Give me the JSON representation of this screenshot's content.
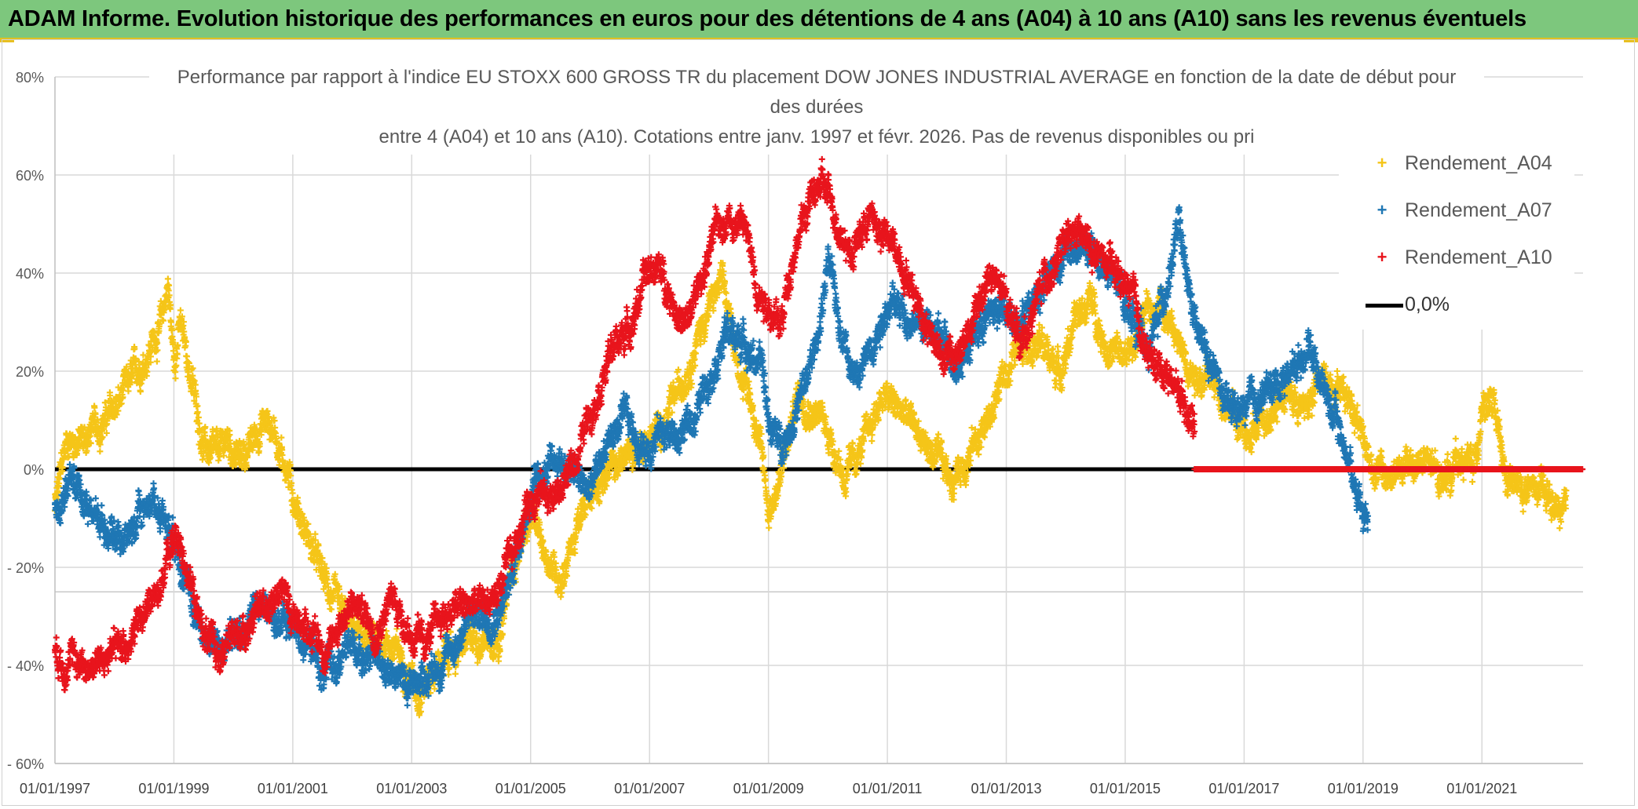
{
  "banner": {
    "title": "ADAM Informe. Evolution historique des performances en euros pour des détentions de 4 ans (A04) à 10 ans (A10) sans les revenus éventuels",
    "background": "#7dc77d"
  },
  "chart_data": {
    "type": "scatter",
    "title_lines": [
      "Performance par rapport à l'indice EU STOXX 600 GROSS TR  du placement DOW JONES INDUSTRIAL AVERAGE en fonction de la date de début pour",
      "des durées",
      "entre 4 (A04) et 10 ans (A10). Cotations entre janv. 1997 et févr. 2026. Pas de revenus disponibles ou pri"
    ],
    "x_tick_labels": [
      "01/01/1997",
      "01/01/1999",
      "01/01/2001",
      "01/01/2003",
      "01/01/2005",
      "01/01/2007",
      "01/01/2009",
      "01/01/2011",
      "01/01/2013",
      "01/01/2015",
      "01/01/2017",
      "01/01/2019",
      "01/01/2021"
    ],
    "x_range": [
      "1997-01-01",
      "2022-09-01"
    ],
    "y_tick_labels": [
      "80%",
      "60%",
      "40%",
      "20%",
      "0%",
      "- 20%",
      "- 40%",
      "- 60%"
    ],
    "y_ticks": [
      80,
      60,
      40,
      20,
      0,
      -20,
      -40,
      -60
    ],
    "ylim": [
      -60,
      80
    ],
    "grid": true,
    "legend_position": "top-right",
    "series": [
      {
        "name": "Rendement_A04",
        "color": "#f5c518",
        "marker": "+",
        "x_end": "2022-06-01",
        "anchors": [
          [
            1997.0,
            -8
          ],
          [
            1997.2,
            6
          ],
          [
            1997.5,
            6
          ],
          [
            1997.8,
            10
          ],
          [
            1998.0,
            12
          ],
          [
            1998.3,
            18
          ],
          [
            1998.6,
            25
          ],
          [
            1998.8,
            30
          ],
          [
            1998.9,
            38
          ],
          [
            1999.0,
            22
          ],
          [
            1999.1,
            30
          ],
          [
            1999.3,
            18
          ],
          [
            1999.5,
            5
          ],
          [
            1999.7,
            2
          ],
          [
            1999.9,
            6
          ],
          [
            2000.1,
            2
          ],
          [
            2000.3,
            5
          ],
          [
            2000.5,
            10
          ],
          [
            2000.7,
            8
          ],
          [
            2000.9,
            0
          ],
          [
            2001.0,
            -5
          ],
          [
            2001.2,
            -12
          ],
          [
            2001.5,
            -22
          ],
          [
            2001.8,
            -30
          ],
          [
            2002.0,
            -33
          ],
          [
            2002.3,
            -36
          ],
          [
            2002.6,
            -35
          ],
          [
            2002.9,
            -40
          ],
          [
            2003.1,
            -45
          ],
          [
            2003.3,
            -42
          ],
          [
            2003.6,
            -38
          ],
          [
            2003.9,
            -36
          ],
          [
            2004.2,
            -34
          ],
          [
            2004.5,
            -33
          ],
          [
            2004.7,
            -20
          ],
          [
            2004.9,
            -12
          ],
          [
            2005.0,
            -10
          ],
          [
            2005.2,
            -16
          ],
          [
            2005.5,
            -22
          ],
          [
            2005.8,
            -12
          ],
          [
            2006.1,
            -2
          ],
          [
            2006.4,
            0
          ],
          [
            2006.7,
            4
          ],
          [
            2007.0,
            6
          ],
          [
            2007.3,
            10
          ],
          [
            2007.6,
            20
          ],
          [
            2007.9,
            30
          ],
          [
            2008.2,
            38
          ],
          [
            2008.5,
            22
          ],
          [
            2008.8,
            10
          ],
          [
            2009.0,
            -8
          ],
          [
            2009.2,
            -2
          ],
          [
            2009.5,
            16
          ],
          [
            2009.8,
            12
          ],
          [
            2010.0,
            8
          ],
          [
            2010.3,
            -2
          ],
          [
            2010.6,
            5
          ],
          [
            2010.9,
            15
          ],
          [
            2011.2,
            12
          ],
          [
            2011.5,
            8
          ],
          [
            2011.8,
            2
          ],
          [
            2012.1,
            -2
          ],
          [
            2012.4,
            4
          ],
          [
            2012.7,
            10
          ],
          [
            2013.0,
            20
          ],
          [
            2013.3,
            28
          ],
          [
            2013.6,
            25
          ],
          [
            2013.9,
            20
          ],
          [
            2014.1,
            28
          ],
          [
            2014.4,
            35
          ],
          [
            2014.7,
            25
          ],
          [
            2015.0,
            22
          ],
          [
            2015.3,
            30
          ],
          [
            2015.6,
            35
          ],
          [
            2015.9,
            25
          ],
          [
            2016.2,
            20
          ],
          [
            2016.5,
            18
          ],
          [
            2016.8,
            12
          ],
          [
            2017.1,
            5
          ],
          [
            2017.4,
            12
          ],
          [
            2017.7,
            16
          ],
          [
            2018.0,
            12
          ],
          [
            2018.3,
            18
          ],
          [
            2018.6,
            18
          ],
          [
            2018.9,
            12
          ],
          [
            2019.1,
            2
          ],
          [
            2019.4,
            -2
          ],
          [
            2019.7,
            0
          ],
          [
            2020.0,
            2
          ],
          [
            2020.3,
            -2
          ],
          [
            2020.6,
            2
          ],
          [
            2020.9,
            1
          ],
          [
            2021.0,
            15
          ],
          [
            2021.2,
            12
          ],
          [
            2021.4,
            -3
          ],
          [
            2021.7,
            -4
          ],
          [
            2022.0,
            -5
          ],
          [
            2022.4,
            -10
          ]
        ]
      },
      {
        "name": "Rendement_A07",
        "color": "#1f77b4",
        "marker": "+",
        "x_end": "2019-02-01",
        "anchors": [
          [
            1997.0,
            -8
          ],
          [
            1997.3,
            -2
          ],
          [
            1997.6,
            -8
          ],
          [
            1997.9,
            -12
          ],
          [
            1998.2,
            -14
          ],
          [
            1998.4,
            -10
          ],
          [
            1998.6,
            -6
          ],
          [
            1998.9,
            -10
          ],
          [
            1999.1,
            -16
          ],
          [
            1999.3,
            -28
          ],
          [
            1999.6,
            -35
          ],
          [
            1999.9,
            -36
          ],
          [
            2000.1,
            -33
          ],
          [
            2000.4,
            -28
          ],
          [
            2000.7,
            -30
          ],
          [
            2001.0,
            -32
          ],
          [
            2001.3,
            -36
          ],
          [
            2001.5,
            -42
          ],
          [
            2001.7,
            -40
          ],
          [
            2002.0,
            -36
          ],
          [
            2002.3,
            -38
          ],
          [
            2002.6,
            -40
          ],
          [
            2002.9,
            -44
          ],
          [
            2003.2,
            -42
          ],
          [
            2003.5,
            -40
          ],
          [
            2003.8,
            -34
          ],
          [
            2004.0,
            -30
          ],
          [
            2004.3,
            -30
          ],
          [
            2004.6,
            -26
          ],
          [
            2004.8,
            -14
          ],
          [
            2005.0,
            -6
          ],
          [
            2005.2,
            -2
          ],
          [
            2005.5,
            2
          ],
          [
            2005.8,
            -2
          ],
          [
            2006.0,
            -5
          ],
          [
            2006.3,
            6
          ],
          [
            2006.6,
            10
          ],
          [
            2006.9,
            4
          ],
          [
            2007.2,
            8
          ],
          [
            2007.5,
            6
          ],
          [
            2007.8,
            12
          ],
          [
            2008.0,
            20
          ],
          [
            2008.3,
            28
          ],
          [
            2008.6,
            26
          ],
          [
            2008.9,
            20
          ],
          [
            2009.0,
            10
          ],
          [
            2009.2,
            5
          ],
          [
            2009.4,
            10
          ],
          [
            2009.6,
            16
          ],
          [
            2009.8,
            25
          ],
          [
            2010.0,
            42
          ],
          [
            2010.2,
            30
          ],
          [
            2010.5,
            18
          ],
          [
            2010.8,
            28
          ],
          [
            2011.0,
            34
          ],
          [
            2011.3,
            32
          ],
          [
            2011.6,
            30
          ],
          [
            2011.9,
            26
          ],
          [
            2012.2,
            22
          ],
          [
            2012.5,
            28
          ],
          [
            2012.8,
            33
          ],
          [
            2013.1,
            30
          ],
          [
            2013.4,
            34
          ],
          [
            2013.7,
            40
          ],
          [
            2014.0,
            44
          ],
          [
            2014.3,
            45
          ],
          [
            2014.6,
            42
          ],
          [
            2014.9,
            36
          ],
          [
            2015.2,
            30
          ],
          [
            2015.4,
            24
          ],
          [
            2015.7,
            38
          ],
          [
            2015.9,
            50
          ],
          [
            2016.0,
            40
          ],
          [
            2016.2,
            28
          ],
          [
            2016.5,
            20
          ],
          [
            2016.7,
            12
          ],
          [
            2017.0,
            12
          ],
          [
            2017.3,
            15
          ],
          [
            2017.6,
            18
          ],
          [
            2017.9,
            22
          ],
          [
            2018.1,
            26
          ],
          [
            2018.3,
            18
          ],
          [
            2018.6,
            8
          ],
          [
            2018.8,
            0
          ],
          [
            2019.0,
            -8
          ]
        ]
      },
      {
        "name": "Rendement_A10",
        "color": "#e8141c",
        "marker": "+",
        "x_end": "2016-03-01",
        "anchors": [
          [
            1997.0,
            -38
          ],
          [
            1997.3,
            -39
          ],
          [
            1997.6,
            -40
          ],
          [
            1997.9,
            -38
          ],
          [
            1998.2,
            -35
          ],
          [
            1998.5,
            -30
          ],
          [
            1998.8,
            -22
          ],
          [
            1999.0,
            -14
          ],
          [
            1999.2,
            -18
          ],
          [
            1999.4,
            -30
          ],
          [
            1999.7,
            -38
          ],
          [
            1999.9,
            -36
          ],
          [
            2000.2,
            -32
          ],
          [
            2000.5,
            -28
          ],
          [
            2000.8,
            -24
          ],
          [
            2001.0,
            -30
          ],
          [
            2001.3,
            -32
          ],
          [
            2001.6,
            -38
          ],
          [
            2001.8,
            -30
          ],
          [
            2002.1,
            -28
          ],
          [
            2002.4,
            -32
          ],
          [
            2002.7,
            -26
          ],
          [
            2003.0,
            -34
          ],
          [
            2003.2,
            -36
          ],
          [
            2003.5,
            -30
          ],
          [
            2003.8,
            -28
          ],
          [
            2004.1,
            -28
          ],
          [
            2004.4,
            -26
          ],
          [
            2004.7,
            -18
          ],
          [
            2004.9,
            -8
          ],
          [
            2005.1,
            -4
          ],
          [
            2005.4,
            -6
          ],
          [
            2005.7,
            0
          ],
          [
            2005.9,
            8
          ],
          [
            2006.1,
            16
          ],
          [
            2006.4,
            25
          ],
          [
            2006.7,
            30
          ],
          [
            2006.9,
            38
          ],
          [
            2007.1,
            42
          ],
          [
            2007.4,
            35
          ],
          [
            2007.6,
            28
          ],
          [
            2007.9,
            40
          ],
          [
            2008.1,
            48
          ],
          [
            2008.3,
            52
          ],
          [
            2008.6,
            50
          ],
          [
            2008.8,
            38
          ],
          [
            2009.0,
            34
          ],
          [
            2009.2,
            28
          ],
          [
            2009.4,
            44
          ],
          [
            2009.7,
            55
          ],
          [
            2009.9,
            58
          ],
          [
            2010.2,
            50
          ],
          [
            2010.4,
            44
          ],
          [
            2010.7,
            52
          ],
          [
            2010.9,
            48
          ],
          [
            2011.2,
            44
          ],
          [
            2011.5,
            35
          ],
          [
            2011.8,
            26
          ],
          [
            2012.1,
            22
          ],
          [
            2012.4,
            28
          ],
          [
            2012.7,
            40
          ],
          [
            2013.0,
            34
          ],
          [
            2013.3,
            26
          ],
          [
            2013.6,
            38
          ],
          [
            2013.9,
            44
          ],
          [
            2014.2,
            48
          ],
          [
            2014.5,
            44
          ],
          [
            2014.8,
            40
          ],
          [
            2015.1,
            36
          ],
          [
            2015.4,
            22
          ],
          [
            2015.7,
            20
          ],
          [
            2016.0,
            14
          ],
          [
            2016.2,
            8
          ]
        ]
      },
      {
        "name": "0,0%",
        "color": "#000000",
        "type": "line",
        "value": 0
      }
    ],
    "zero_markers_after": "2016-03-01"
  },
  "legend": {
    "items": [
      {
        "label": "Rendement_A04",
        "symbol": "+"
      },
      {
        "label": "Rendement_A07",
        "symbol": "+"
      },
      {
        "label": "Rendement_A10",
        "symbol": "+"
      },
      {
        "label": "0,0%",
        "symbol": "line"
      }
    ]
  }
}
